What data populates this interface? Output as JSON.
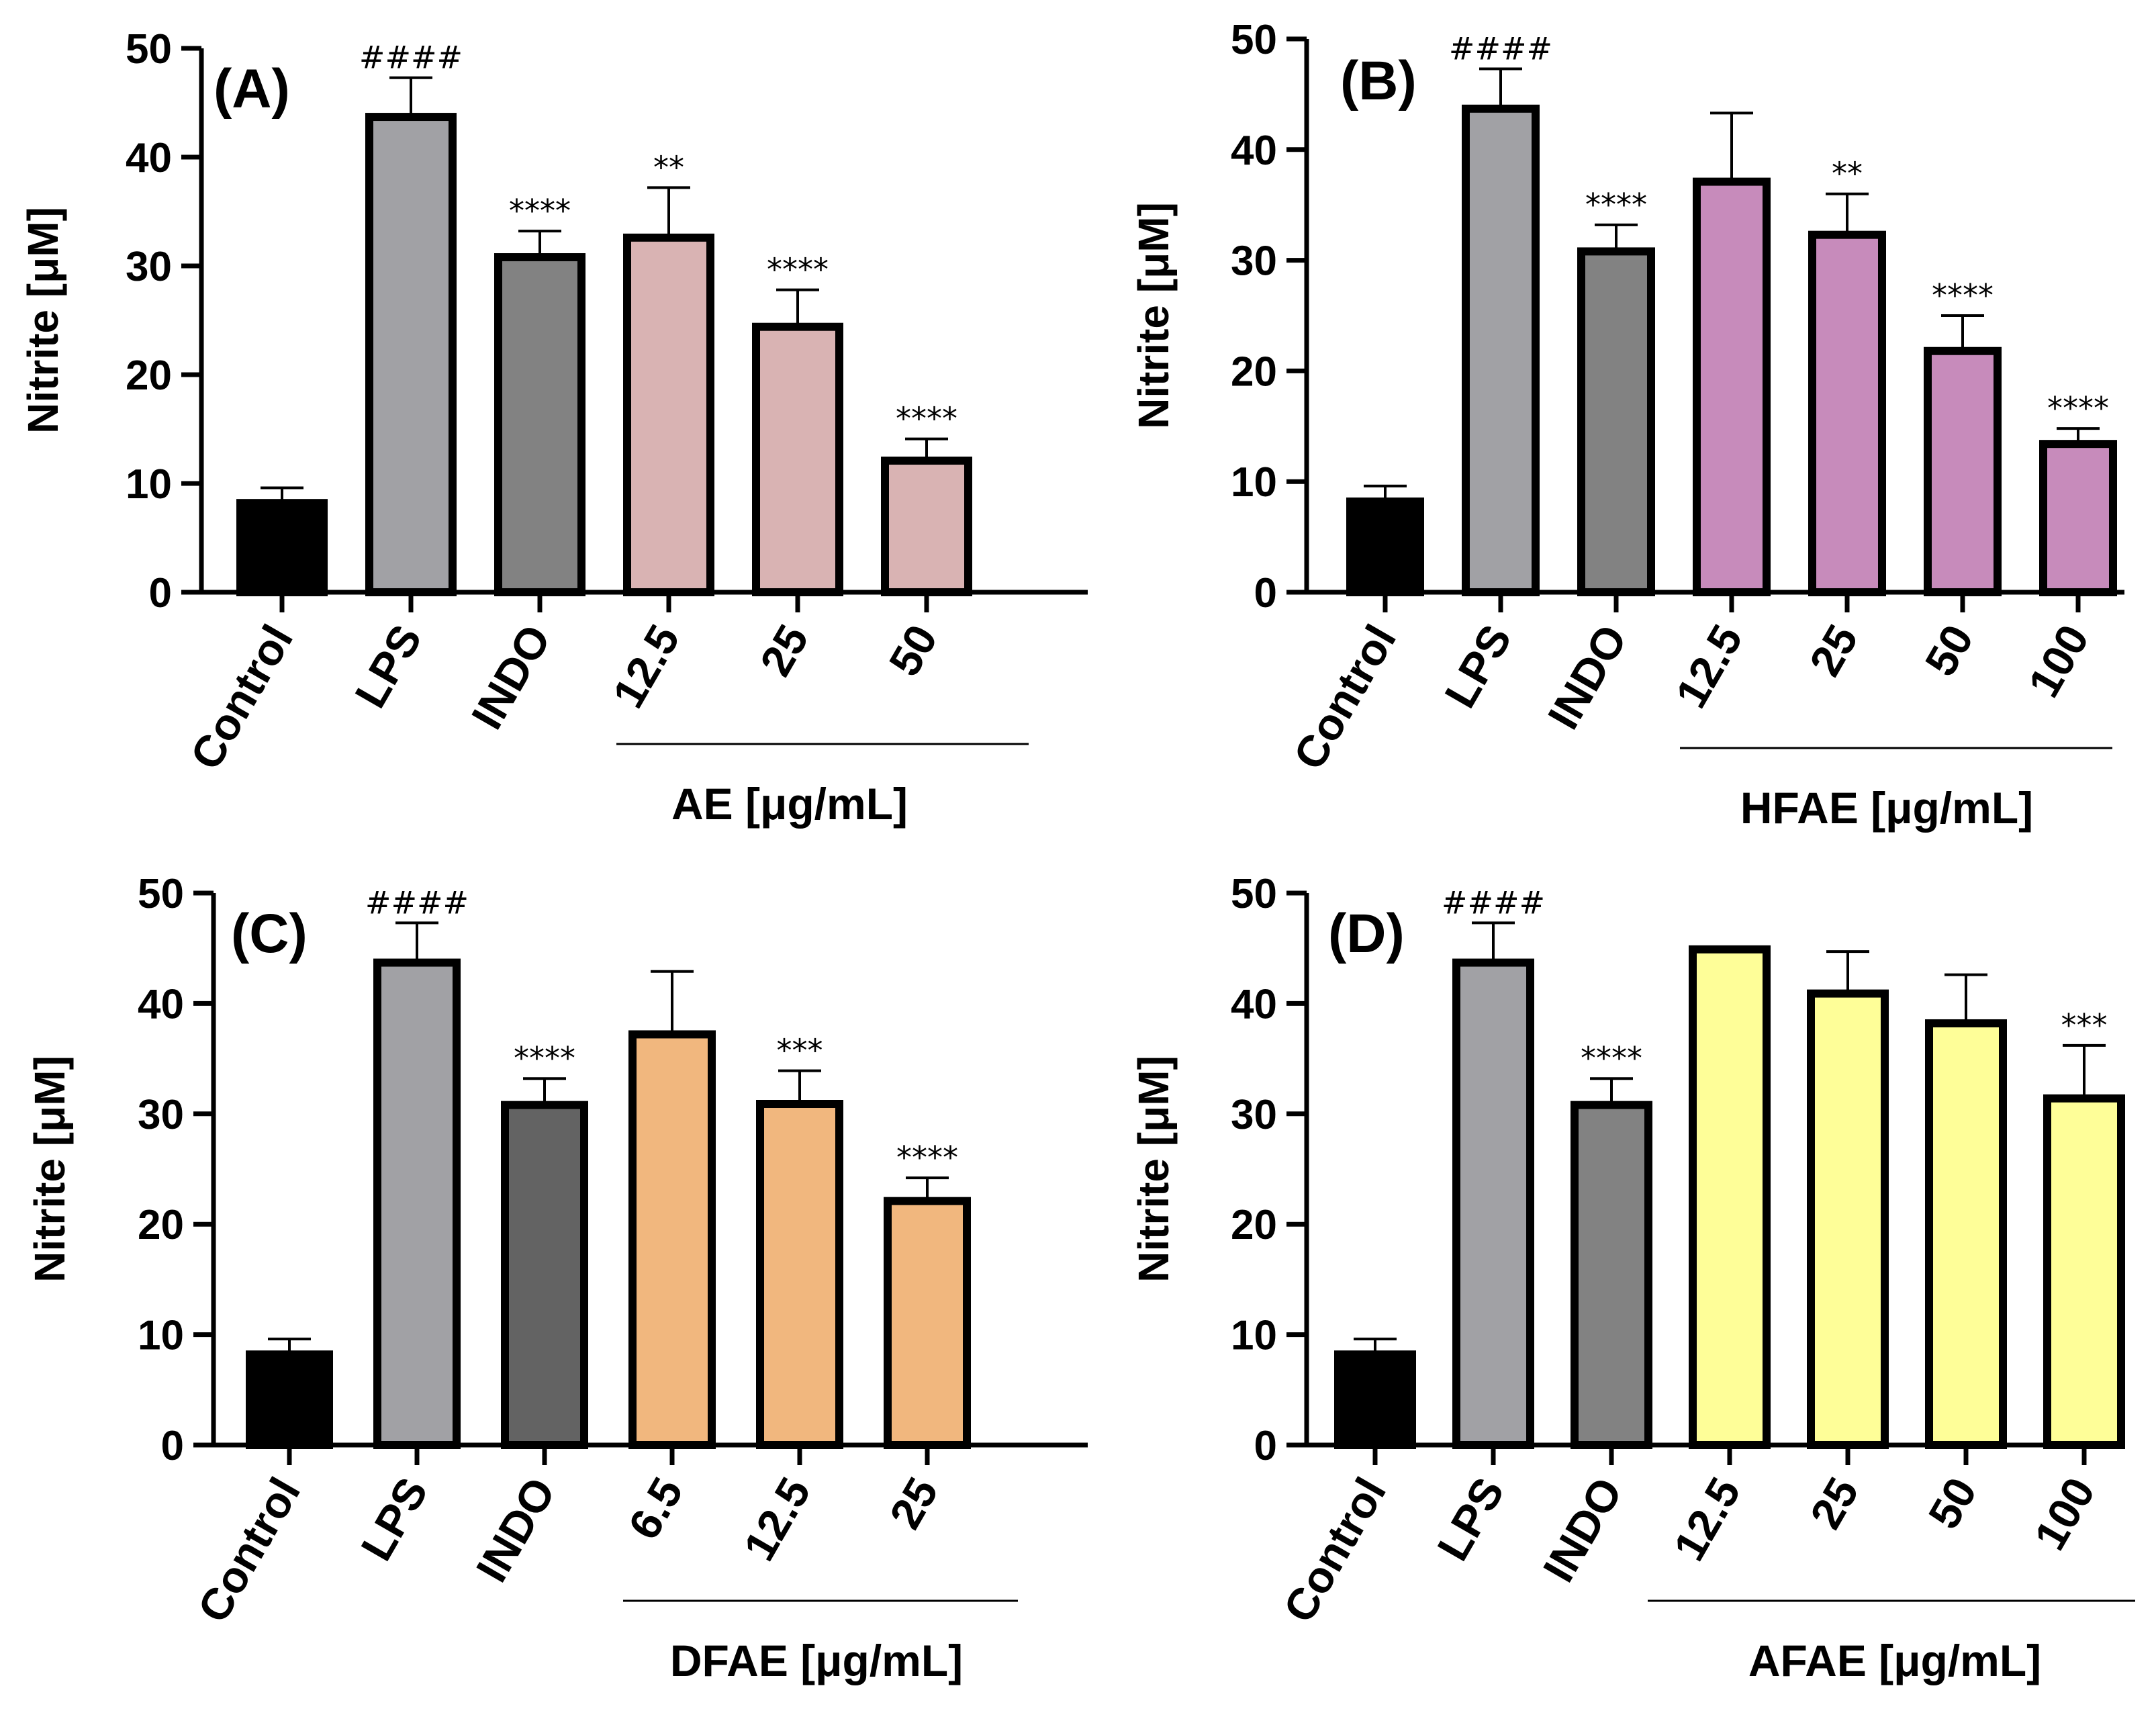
{
  "chart_data": [
    {
      "type": "bar",
      "panel": "(A)",
      "ylabel": "Nitrite  [μM]",
      "ylim": [
        0,
        50
      ],
      "yticks": [
        0,
        10,
        20,
        30,
        40,
        50
      ],
      "categories": [
        "Control",
        "LPS",
        "INDO",
        "12.5",
        "25",
        "50"
      ],
      "values": [
        8.2,
        43.7,
        30.8,
        32.6,
        24.4,
        12.1
      ],
      "errors": [
        1.4,
        3.6,
        2.4,
        4.6,
        3.4,
        2.0
      ],
      "significance": [
        "",
        "####",
        "****",
        "**",
        "****",
        "****"
      ],
      "colors": [
        "#000000",
        "#a1a1a5",
        "#828282",
        "#d9b3b3",
        "#d9b3b3",
        "#d9b3b3"
      ],
      "group_label": "AE [μg/mL]",
      "group_from": 3
    },
    {
      "type": "bar",
      "panel": "(B)",
      "ylabel": "Nitrite  [μM]",
      "ylim": [
        0,
        50
      ],
      "yticks": [
        0,
        10,
        20,
        30,
        40,
        50
      ],
      "categories": [
        "Control",
        "LPS",
        "INDO",
        "12.5",
        "25",
        "50",
        "100"
      ],
      "values": [
        8.2,
        43.7,
        30.8,
        37.1,
        32.3,
        21.8,
        13.4
      ],
      "errors": [
        1.4,
        3.6,
        2.4,
        6.2,
        3.7,
        3.2,
        1.4
      ],
      "significance": [
        "",
        "####",
        "****",
        "",
        "**",
        "****",
        "****"
      ],
      "colors": [
        "#000000",
        "#a1a1a5",
        "#828282",
        "#c78bbb",
        "#c78bbb",
        "#c78bbb",
        "#c78bbb"
      ],
      "group_label": "HFAE [μg/mL]",
      "group_from": 3
    },
    {
      "type": "bar",
      "panel": "(C)",
      "ylabel": "Nitrite [μM]",
      "ylim": [
        0,
        50
      ],
      "yticks": [
        0,
        10,
        20,
        30,
        40,
        50
      ],
      "categories": [
        "Control",
        "LPS",
        "INDO",
        "6.5",
        "12.5",
        "25"
      ],
      "values": [
        8.2,
        43.7,
        30.8,
        37.2,
        30.9,
        22.1
      ],
      "errors": [
        1.4,
        3.6,
        2.4,
        5.7,
        3.0,
        2.1
      ],
      "significance": [
        "",
        "####",
        "****",
        "",
        "***",
        "****"
      ],
      "colors": [
        "#000000",
        "#a1a1a5",
        "#636363",
        "#f1b77e",
        "#f1b77e",
        "#f1b77e"
      ],
      "group_label": "DFAE [μg/mL]",
      "group_from": 3
    },
    {
      "type": "bar",
      "panel": "(D)",
      "ylabel": "Nitrite  [μM]",
      "ylim": [
        0,
        50
      ],
      "yticks": [
        0,
        10,
        20,
        30,
        40,
        50
      ],
      "categories": [
        "Control",
        "LPS",
        "INDO",
        "12.5",
        "25",
        "50",
        "100"
      ],
      "values": [
        8.2,
        43.7,
        30.8,
        44.9,
        40.9,
        38.2,
        31.4
      ],
      "errors": [
        1.4,
        3.6,
        2.4,
        0.0,
        3.8,
        4.4,
        4.8
      ],
      "significance": [
        "",
        "####",
        "****",
        "",
        "",
        "",
        "***"
      ],
      "colors": [
        "#000000",
        "#a1a1a5",
        "#828282",
        "#fefe98",
        "#fefe98",
        "#fefe98",
        "#fefe98"
      ],
      "group_label": "AFAE [μg/mL]",
      "group_from": 3
    }
  ]
}
